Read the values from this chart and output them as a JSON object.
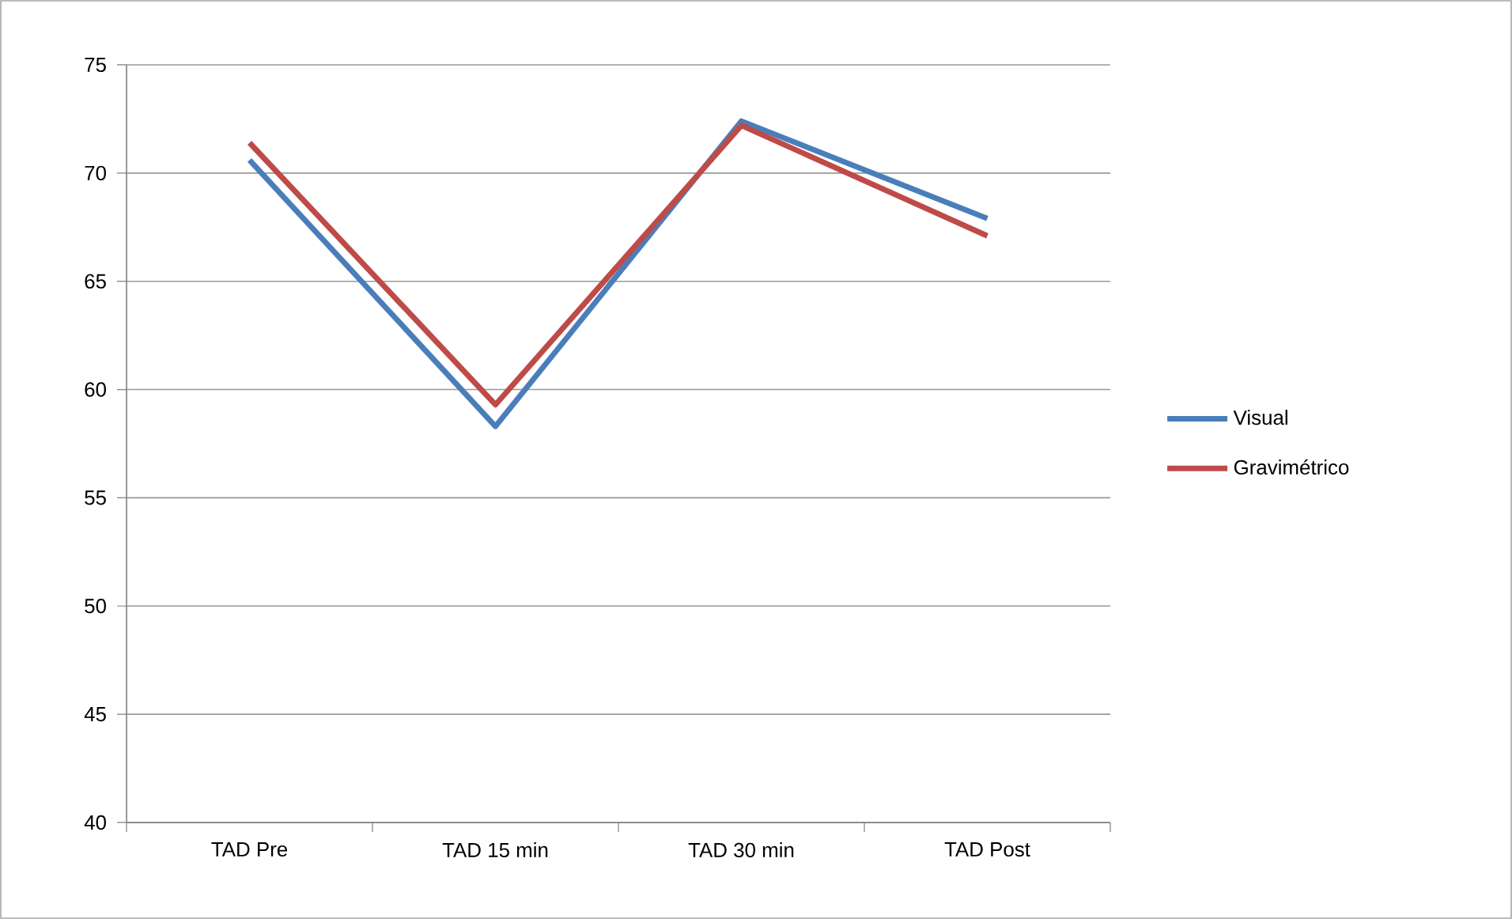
{
  "chart_data": {
    "type": "line",
    "categories": [
      "TAD Pre",
      "TAD 15 min",
      "TAD 30 min",
      "TAD Post"
    ],
    "series": [
      {
        "name": "Visual",
        "color": "#4a7ebb",
        "values": [
          70.6,
          58.3,
          72.4,
          67.9
        ]
      },
      {
        "name": "Gravimétrico",
        "color": "#be4b48",
        "values": [
          71.4,
          59.3,
          72.2,
          67.1
        ]
      }
    ],
    "ylim": [
      40,
      75
    ],
    "yticks": [
      40,
      45,
      50,
      55,
      60,
      65,
      70,
      75
    ],
    "grid": "y",
    "legend": "right",
    "marker": "none",
    "line_style": "solid"
  }
}
